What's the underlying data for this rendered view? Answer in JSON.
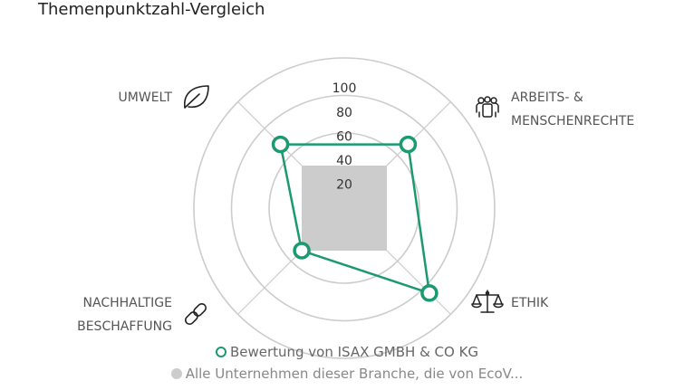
{
  "chart_data": {
    "type": "radar",
    "title": "Themenpunktzahl-Vergleich",
    "categories": [
      "UMWELT",
      "ARBEITS- & MENSCHENRECHTE",
      "ETHIK",
      "NACHHALTIGE BESCHAFFUNG"
    ],
    "category_lines": [
      [
        "UMWELT"
      ],
      [
        "ARBEITS- &",
        "MENSCHENRECHTE"
      ],
      [
        "ETHIK"
      ],
      [
        "NACHHALTIGE",
        "BESCHAFFUNG"
      ]
    ],
    "category_icons": [
      "leaf-icon",
      "people-group-icon",
      "scales-icon",
      "chain-link-icon"
    ],
    "rlim": [
      0,
      100
    ],
    "ticks": [
      20,
      40,
      60,
      80,
      100
    ],
    "grid": true,
    "series": [
      {
        "name": "Bewertung von ISAX GMBH & CO KG",
        "values": [
          60,
          60,
          80,
          40
        ],
        "color": "#1b9a6f",
        "style": "outline-with-markers"
      },
      {
        "name": "Alle Unternehmen dieser Branche, die von EcoV...",
        "values": [
          40,
          40,
          40,
          40
        ],
        "color": "#cccccc",
        "style": "filled"
      }
    ],
    "legend_position": "bottom-center"
  }
}
